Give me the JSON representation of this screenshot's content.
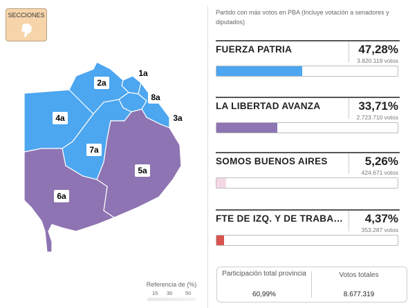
{
  "map": {
    "button": "SECCIONES",
    "sections": [
      {
        "label": "1a",
        "color": "#4ca6f0"
      },
      {
        "label": "2a",
        "color": "#4ca6f0"
      },
      {
        "label": "8a",
        "color": "#4ca6f0"
      },
      {
        "label": "3a",
        "color": "#4ca6f0"
      },
      {
        "label": "4a",
        "color": "#4ca6f0"
      },
      {
        "label": "7a",
        "color": "#4ca6f0"
      },
      {
        "label": "5a",
        "color": "#8e74b2"
      },
      {
        "label": "6a",
        "color": "#8e74b2"
      }
    ],
    "legend": {
      "title": "Referencia de (%)",
      "ticks": [
        15,
        30,
        50
      ]
    }
  },
  "results": {
    "subtitle": "Partido con más votos en PBA (Incluye votación a senadores y diputados)",
    "rows": [
      {
        "party": "FUERZA PATRIA",
        "value": 47.28,
        "value_label": "47,28%",
        "votes": "3.820.119 votos",
        "color": "#4ca6f0"
      },
      {
        "party": "LA LIBERTAD AVANZA",
        "value": 33.71,
        "value_label": "33,71%",
        "votes": "2.723.710 votos",
        "color": "#8e74b2"
      },
      {
        "party": "SOMOS BUENOS AIRES",
        "value": 5.26,
        "value_label": "5,26%",
        "votes": "424.671 votos",
        "color": "#f5d8e6"
      },
      {
        "party": "FTE DE IZQ. Y DE TRABAJADORES - UNIDAD",
        "value": 4.37,
        "value_label": "4,37%",
        "votes": "353.287 votos",
        "color": "#d9534f"
      }
    ]
  },
  "footer": {
    "participation_label": "Participación total provincia",
    "participation": "60,99%",
    "total_label": "Votos totales",
    "total": "8.677.319"
  }
}
